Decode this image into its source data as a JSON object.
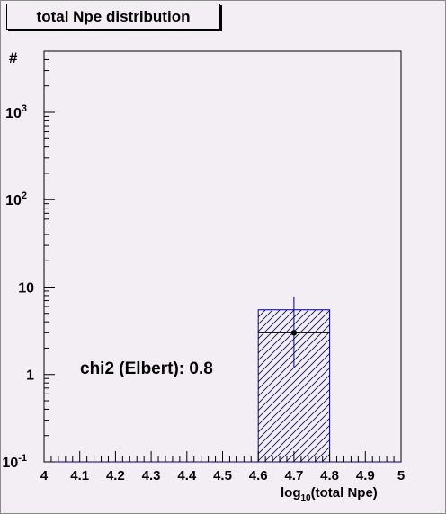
{
  "chart_data": {
    "type": "bar",
    "title": "total Npe distribution",
    "xlabel": "log",
    "xlabel_sub": "10",
    "xlabel_rest": "(total Npe)",
    "ylabel": "#",
    "xlim": [
      4,
      5
    ],
    "ylim": [
      0.1,
      5000
    ],
    "yscale": "log",
    "x_ticks": [
      "4",
      "4.1",
      "4.2",
      "4.3",
      "4.4",
      "4.5",
      "4.6",
      "4.7",
      "4.8",
      "4.9",
      "5"
    ],
    "y_ticks": [
      {
        "value": 0.1,
        "base": "10",
        "exp": "-1"
      },
      {
        "value": 1,
        "base": "1",
        "exp": ""
      },
      {
        "value": 10,
        "base": "10",
        "exp": ""
      },
      {
        "value": 100,
        "base": "10",
        "exp": "2"
      },
      {
        "value": 1000,
        "base": "10",
        "exp": "3"
      }
    ],
    "histogram": {
      "bins": [
        {
          "x0": 4.6,
          "x1": 4.8,
          "value": 5.5
        }
      ],
      "fill_color": "#000080",
      "hatch": "diagonal"
    },
    "points": [
      {
        "x": 4.7,
        "y": 3.0,
        "yerr_low": 1.2,
        "yerr_high": 7.8,
        "xerr_low": 4.6,
        "xerr_high": 4.8
      }
    ],
    "annotation": "chi2 (Elbert): 0.8",
    "grid": false
  },
  "colors": {
    "background": "#f3eef3",
    "hist": "#000080",
    "point": "#000000"
  }
}
